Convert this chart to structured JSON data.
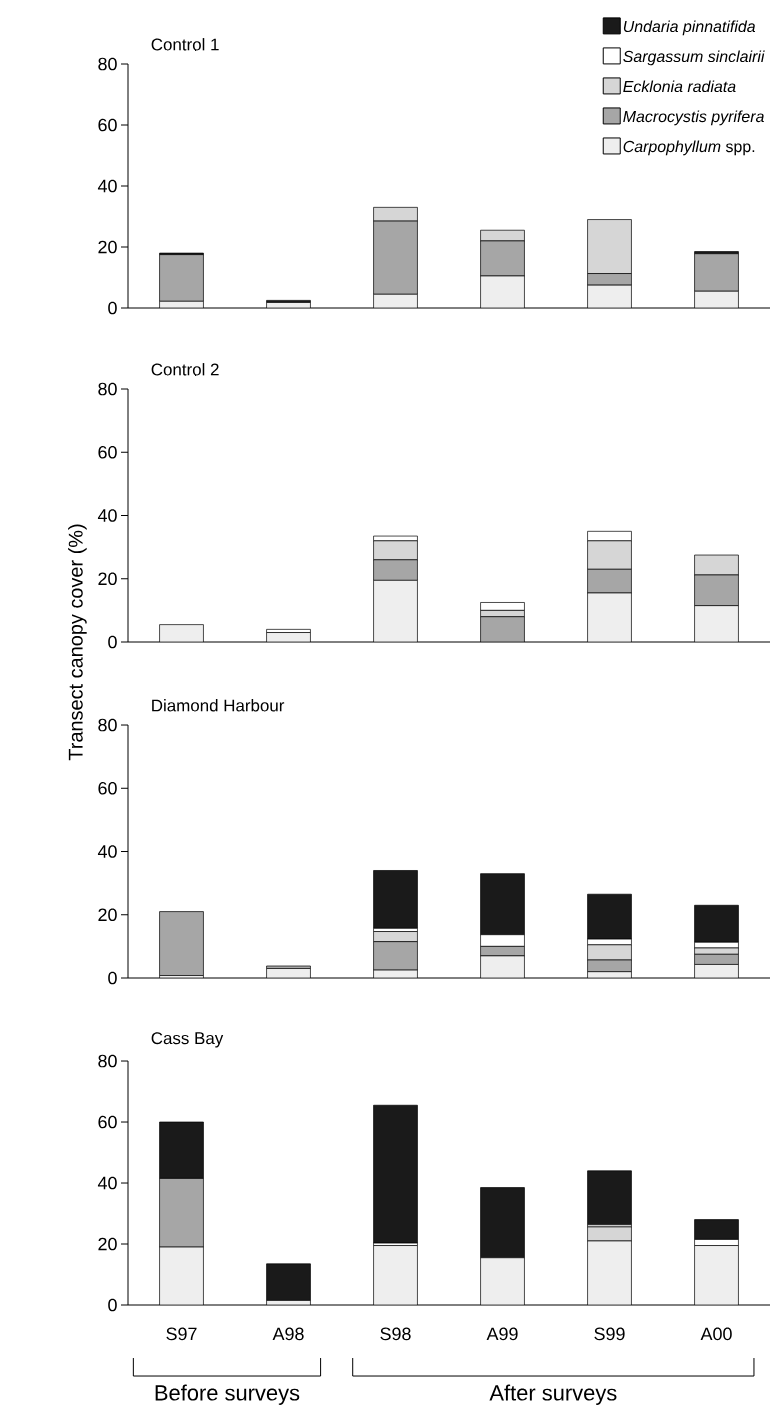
{
  "chart_data": [
    {
      "type": "bar",
      "stacked": true,
      "title": "Control 1",
      "categories": [
        null,
        null,
        null,
        null,
        null,
        null
      ],
      "ylim": [
        0,
        80
      ],
      "yticks": [
        0,
        20,
        40,
        60,
        80
      ],
      "tick_labels": "y",
      "legend": "top right",
      "series": [
        {
          "name": "*Carpophyllum* spp.",
          "color": "#eeeeee",
          "values": [
            2.2,
            1.8,
            4.5,
            10.5,
            7.5,
            5.5
          ]
        },
        {
          "name": "*Macrocystis pyrifera*",
          "color": "#a6a6a6",
          "values": [
            15.3,
            null,
            24,
            11.5,
            3.8,
            12.3
          ]
        },
        {
          "name": "*Ecklonia radiata*",
          "color": "#d6d6d6",
          "values": [
            null,
            null,
            4.5,
            3.5,
            17.7,
            null
          ]
        },
        {
          "name": "*Sargassum sinclairii*",
          "color": "#ffffff",
          "values": [
            null,
            null,
            null,
            null,
            null,
            null
          ]
        },
        {
          "name": "*Undaria pinnatifida*",
          "color": "#1a1a1a",
          "values": [
            0.5,
            0.7,
            null,
            null,
            null,
            0.7
          ]
        }
      ]
    },
    {
      "type": "bar",
      "stacked": true,
      "title": "Control 2",
      "ylabel": "Transect canopy cover (%)",
      "categories": [
        null,
        null,
        null,
        null,
        null,
        null
      ],
      "ylim": [
        0,
        80
      ],
      "yticks": [
        0,
        20,
        40,
        60,
        80
      ],
      "tick_labels": "y",
      "series": [
        {
          "color": "#eeeeee",
          "values": [
            5.5,
            3,
            19.5,
            null,
            15.5,
            11.5
          ]
        },
        {
          "color": "#a6a6a6",
          "values": [
            null,
            null,
            6.5,
            8,
            7.5,
            9.7
          ]
        },
        {
          "color": "#d6d6d6",
          "values": [
            null,
            null,
            6,
            2,
            9,
            6.3
          ]
        },
        {
          "color": "#ffffff",
          "values": [
            null,
            1,
            1.5,
            2.5,
            3,
            null
          ]
        },
        {
          "color": "#1a1a1a",
          "values": [
            null,
            null,
            null,
            null,
            null,
            null
          ]
        }
      ]
    },
    {
      "type": "bar",
      "stacked": true,
      "title": "Diamond Harbour",
      "categories": [
        null,
        null,
        null,
        null,
        null,
        null
      ],
      "ylim": [
        0,
        80
      ],
      "yticks": [
        0,
        20,
        40,
        60,
        80
      ],
      "tick_labels": "y",
      "series": [
        {
          "color": "#eeeeee",
          "values": [
            0.8,
            3,
            2.5,
            7,
            2,
            4.3
          ]
        },
        {
          "color": "#a6a6a6",
          "values": [
            20.2,
            0.8,
            9,
            3,
            3.7,
            3.2
          ]
        },
        {
          "color": "#d6d6d6",
          "values": [
            null,
            null,
            3.2,
            null,
            4.8,
            2
          ]
        },
        {
          "color": "#ffffff",
          "values": [
            null,
            null,
            1,
            3.7,
            1.8,
            1.8
          ]
        },
        {
          "color": "#1a1a1a",
          "values": [
            null,
            null,
            18.3,
            19.3,
            14.2,
            11.7
          ]
        }
      ]
    },
    {
      "type": "bar",
      "stacked": true,
      "title": "Cass Bay",
      "categories": [
        "S97",
        "A98",
        "S98",
        "A99",
        "S99",
        "A00"
      ],
      "ylim": [
        0,
        80
      ],
      "yticks": [
        0,
        20,
        40,
        60,
        80
      ],
      "annotations": [
        "Before surveys",
        "After surveys"
      ],
      "series": [
        {
          "color": "#eeeeee",
          "values": [
            19,
            1.5,
            19.5,
            15.5,
            21,
            19.5
          ]
        },
        {
          "color": "#a6a6a6",
          "values": [
            22.5,
            null,
            null,
            null,
            null,
            null
          ]
        },
        {
          "color": "#d6d6d6",
          "values": [
            null,
            null,
            null,
            null,
            4.6,
            null
          ]
        },
        {
          "color": "#ffffff",
          "values": [
            null,
            null,
            0.8,
            null,
            0.7,
            2
          ]
        },
        {
          "color": "#1a1a1a",
          "values": [
            18.5,
            12,
            45.2,
            23,
            17.7,
            6.5
          ]
        }
      ]
    }
  ]
}
